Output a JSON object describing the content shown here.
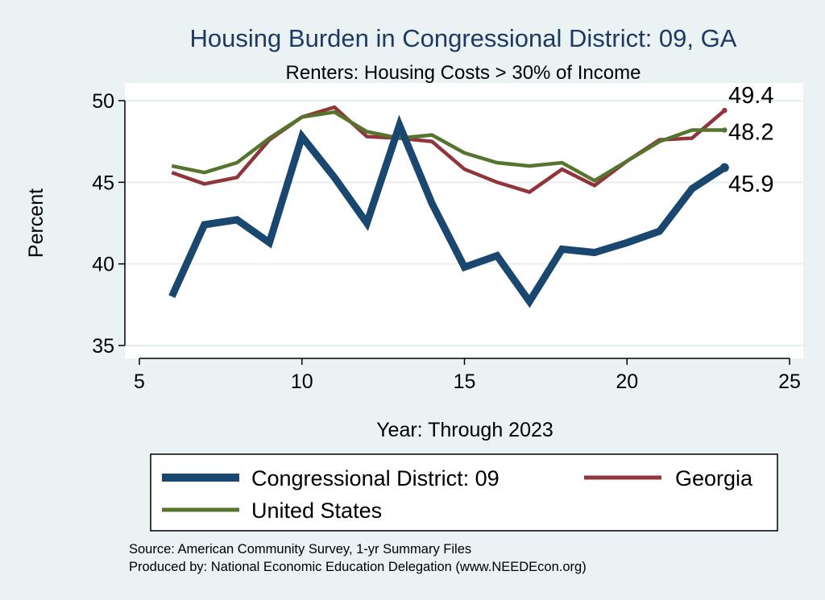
{
  "chart_data": {
    "type": "line",
    "title": "Housing Burden in Congressional District:  09, GA",
    "subtitle": "Renters: Housing Costs > 30% of Income",
    "xlabel": "Year: Through 2023",
    "ylabel": "Percent",
    "xlim": [
      5,
      25
    ],
    "ylim": [
      35,
      50
    ],
    "xticks": [
      5,
      10,
      15,
      20,
      25
    ],
    "yticks": [
      35,
      40,
      45,
      50
    ],
    "grid": true,
    "legend_position": "bottom",
    "colors": {
      "background": "#eaf2f3",
      "plot_background": "#ffffff",
      "title": "#1f3864",
      "grid": "#e6eef0"
    },
    "series": [
      {
        "name": "Congressional District:  09",
        "color": "#1a476f",
        "width": 9,
        "x": [
          6,
          7,
          8,
          9,
          10,
          11,
          12,
          13,
          14,
          15,
          16,
          17,
          18,
          19,
          20,
          21,
          22,
          23
        ],
        "values": [
          38.0,
          42.4,
          42.7,
          41.3,
          47.8,
          45.3,
          42.5,
          48.5,
          43.7,
          39.8,
          40.5,
          37.7,
          40.9,
          40.7,
          41.3,
          42.0,
          44.6,
          45.9
        ],
        "end_label": "45.9"
      },
      {
        "name": "Georgia",
        "color": "#90353b",
        "width": 4.5,
        "x": [
          6,
          7,
          8,
          9,
          10,
          11,
          12,
          13,
          14,
          15,
          16,
          17,
          18,
          19,
          20,
          21,
          22,
          23
        ],
        "values": [
          45.6,
          44.9,
          45.3,
          47.6,
          49.0,
          49.6,
          47.8,
          47.7,
          47.5,
          45.8,
          45.0,
          44.4,
          45.8,
          44.8,
          46.3,
          47.6,
          47.7,
          49.4
        ],
        "end_label": "49.4"
      },
      {
        "name": "United States",
        "color": "#55752f",
        "width": 4.5,
        "x": [
          6,
          7,
          8,
          9,
          10,
          11,
          12,
          13,
          14,
          15,
          16,
          17,
          18,
          19,
          20,
          21,
          22,
          23
        ],
        "values": [
          46.0,
          45.6,
          46.2,
          47.7,
          49.0,
          49.3,
          48.1,
          47.7,
          47.9,
          46.8,
          46.2,
          46.0,
          46.2,
          45.1,
          46.3,
          47.5,
          48.2,
          48.2
        ],
        "end_label": "48.2"
      }
    ]
  },
  "notes": {
    "source": "Source: American Community Survey, 1-yr Summary Files",
    "produced_by": "Produced by: National Economic Education Delegation (www.NEEDEcon.org)"
  }
}
